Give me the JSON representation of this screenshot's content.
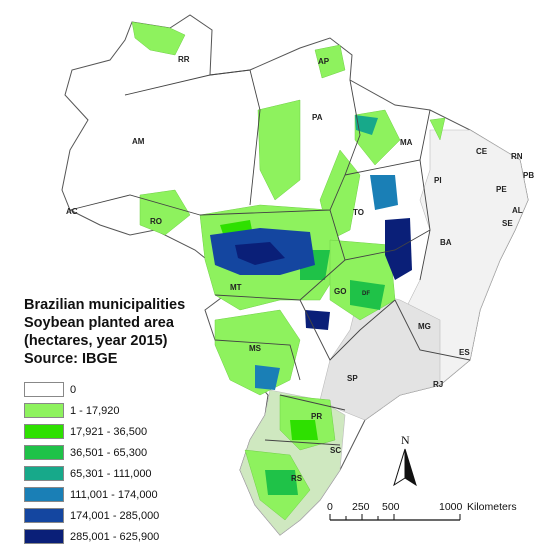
{
  "legend": {
    "title_lines": [
      "Brazilian municipalities",
      "Soybean planted area",
      "(hectares, year 2015)",
      "Source: IBGE"
    ],
    "classes": [
      {
        "label": "0",
        "color": "#ffffff"
      },
      {
        "label": "1 - 17,920",
        "color": "#8ef25e"
      },
      {
        "label": "17,921 - 36,500",
        "color": "#2ee000"
      },
      {
        "label": "36,501 - 65,300",
        "color": "#1fc248"
      },
      {
        "label": "65,301 - 111,000",
        "color": "#17a98a"
      },
      {
        "label": "111,001 - 174,000",
        "color": "#1a7fb6"
      },
      {
        "label": "174,001 - 285,000",
        "color": "#1446a0"
      },
      {
        "label": "285,001 - 625,900",
        "color": "#0a1f78"
      }
    ]
  },
  "states": [
    {
      "abbr": "RR"
    },
    {
      "abbr": "AP"
    },
    {
      "abbr": "AM"
    },
    {
      "abbr": "PA"
    },
    {
      "abbr": "MA"
    },
    {
      "abbr": "CE"
    },
    {
      "abbr": "RN"
    },
    {
      "abbr": "PB"
    },
    {
      "abbr": "PE"
    },
    {
      "abbr": "PI"
    },
    {
      "abbr": "AL"
    },
    {
      "abbr": "SE"
    },
    {
      "abbr": "AC"
    },
    {
      "abbr": "RO"
    },
    {
      "abbr": "TO"
    },
    {
      "abbr": "BA"
    },
    {
      "abbr": "MT"
    },
    {
      "abbr": "GO"
    },
    {
      "abbr": "DF"
    },
    {
      "abbr": "MG"
    },
    {
      "abbr": "ES"
    },
    {
      "abbr": "MS"
    },
    {
      "abbr": "SP"
    },
    {
      "abbr": "RJ"
    },
    {
      "abbr": "PR"
    },
    {
      "abbr": "SC"
    },
    {
      "abbr": "RS"
    }
  ],
  "north_arrow": {
    "label": "N"
  },
  "scale_bar": {
    "ticks": [
      "0",
      "250",
      "500",
      "1000"
    ],
    "unit": "Kilometers"
  }
}
